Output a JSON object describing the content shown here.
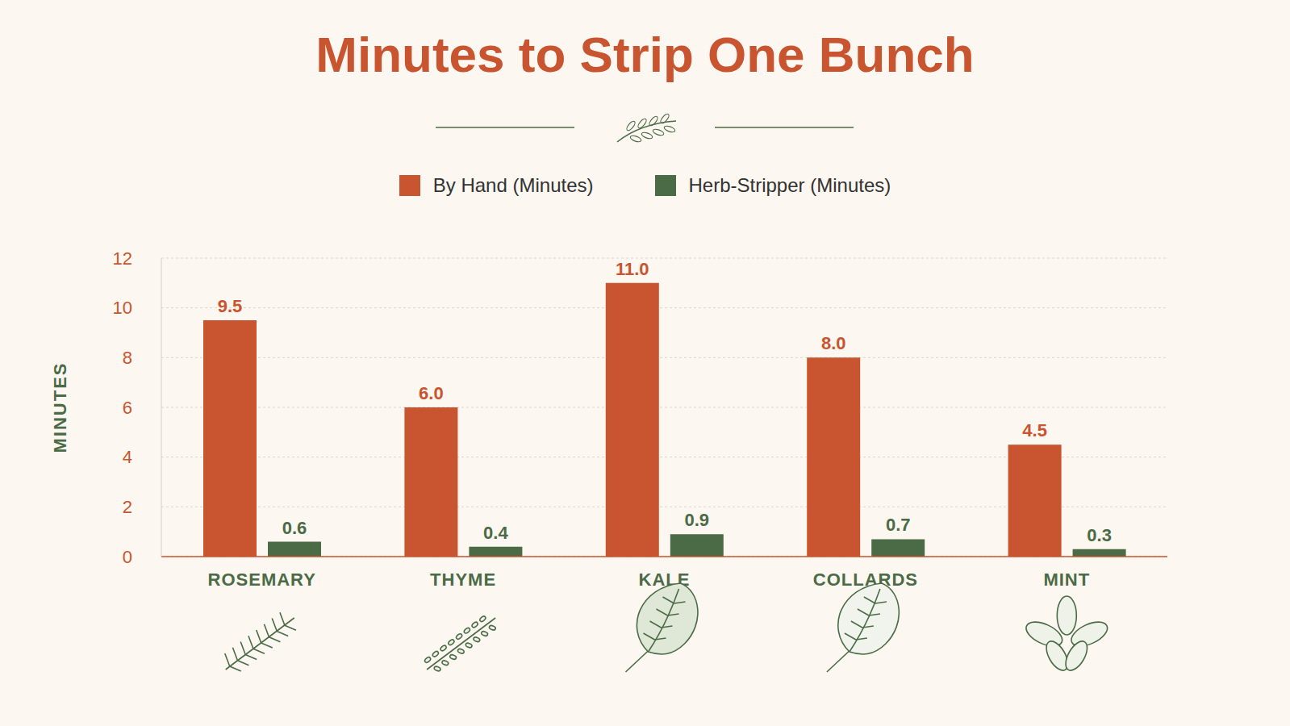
{
  "chart_data": {
    "type": "bar",
    "title": "Minutes to Strip One Bunch",
    "y_label": "MINUTES",
    "categories": [
      "ROSEMARY",
      "THYME",
      "KALE",
      "COLLARDS",
      "MINT"
    ],
    "series": [
      {
        "name": "By Hand (Minutes)",
        "color": "#c8552f",
        "values": [
          9.5,
          6.0,
          11.0,
          8.0,
          4.5
        ],
        "value_labels": [
          "9.5",
          "6.0",
          "11.0",
          "8.0",
          "4.5"
        ]
      },
      {
        "name": "Herb-Stripper (Minutes)",
        "color": "#4b6b46",
        "values": [
          0.6,
          0.4,
          0.9,
          0.7,
          0.3
        ],
        "value_labels": [
          "0.6",
          "0.4",
          "0.9",
          "0.7",
          "0.3"
        ]
      }
    ],
    "ylim": [
      0,
      12
    ],
    "yticks": [
      0,
      2,
      4,
      6,
      8,
      10,
      12
    ],
    "grid": true,
    "data_labels": true,
    "legend": "top"
  }
}
